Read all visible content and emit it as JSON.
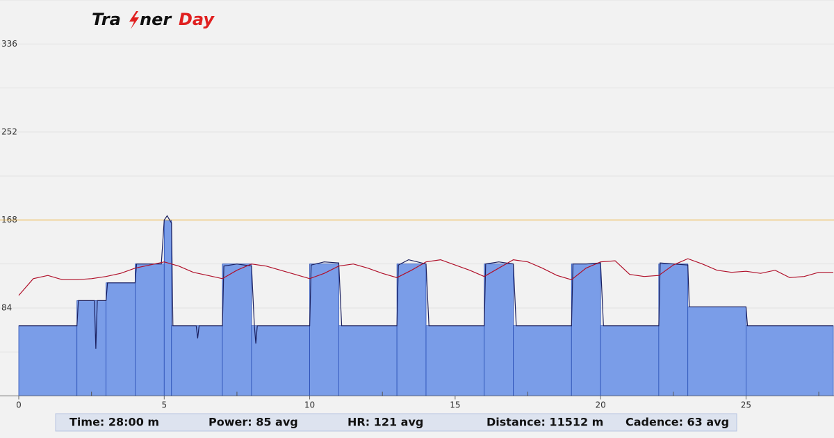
{
  "chart_data": {
    "type": "line",
    "logo": [
      "Tra",
      "ner",
      "Day"
    ],
    "logo_colors": [
      "#111111",
      "#e02020"
    ],
    "xlim": [
      0,
      28
    ],
    "xticks": [
      0,
      5,
      10,
      15,
      20,
      25
    ],
    "minor_xticks": [
      2.5,
      7.5,
      12.5,
      17.5,
      22.5,
      27.5
    ],
    "ylim": [
      0,
      378
    ],
    "yticks": [
      84,
      168,
      252,
      336
    ],
    "minor_yticks": [
      42,
      126,
      210,
      294,
      378
    ],
    "grid": true,
    "reference_line": {
      "value": 168,
      "color": "#f0b030"
    },
    "series": [
      {
        "style": "step",
        "color": "#7a9de8",
        "edge_color": "#2a4fb5",
        "x": [
          0,
          2,
          3,
          4,
          5,
          5.25,
          7,
          8,
          10,
          11,
          13,
          14,
          16,
          17,
          19,
          20,
          22,
          23,
          25
        ],
        "values": [
          67,
          91,
          108,
          126,
          168,
          67,
          126,
          67,
          126,
          67,
          126,
          67,
          126,
          67,
          126,
          67,
          126,
          85,
          67
        ]
      },
      {
        "style": "line",
        "color": "#1a1f5e",
        "x": [
          0,
          2,
          2.05,
          2.6,
          2.65,
          2.7,
          3,
          3.05,
          4,
          4.05,
          4.9,
          5,
          5.1,
          5.25,
          5.3,
          6.1,
          6.15,
          6.2,
          7,
          7.05,
          7.5,
          8,
          8.1,
          8.15,
          8.2,
          10,
          10.05,
          10.5,
          11,
          11.1,
          13,
          13.05,
          13.4,
          14,
          14.1,
          16,
          16.05,
          16.5,
          17,
          17.1,
          19,
          19.05,
          19.5,
          20,
          20.1,
          22,
          22.05,
          22.5,
          23,
          23.05,
          25,
          25.05,
          28
        ],
        "values": [
          67,
          67,
          91,
          91,
          45,
          91,
          91,
          108,
          108,
          126,
          126,
          168,
          172,
          165,
          67,
          67,
          55,
          67,
          67,
          124,
          126,
          124,
          67,
          50,
          67,
          67,
          125,
          128,
          127,
          67,
          67,
          125,
          130,
          126,
          67,
          67,
          126,
          128,
          126,
          67,
          67,
          126,
          126,
          127,
          67,
          67,
          127,
          126,
          125,
          85,
          85,
          67,
          67
        ]
      },
      {
        "style": "line",
        "color": "#b0102a",
        "x": [
          0,
          0.5,
          1,
          1.5,
          2,
          2.5,
          3,
          3.5,
          4,
          4.5,
          5,
          5.5,
          6,
          6.5,
          7,
          7.5,
          8,
          8.5,
          9,
          9.5,
          10,
          10.5,
          11,
          11.5,
          12,
          12.5,
          13,
          13.5,
          14,
          14.5,
          15,
          15.5,
          16,
          16.5,
          17,
          17.5,
          18,
          18.5,
          19,
          19.5,
          20,
          20.5,
          21,
          21.5,
          22,
          22.5,
          23,
          23.5,
          24,
          24.5,
          25,
          25.5,
          26,
          26.5,
          27,
          27.5,
          28
        ],
        "values": [
          96,
          112,
          115,
          111,
          111,
          112,
          114,
          117,
          122,
          125,
          128,
          124,
          118,
          115,
          112,
          120,
          126,
          124,
          120,
          116,
          112,
          117,
          124,
          126,
          122,
          117,
          113,
          120,
          128,
          130,
          125,
          120,
          114,
          122,
          130,
          128,
          122,
          115,
          111,
          122,
          128,
          129,
          116,
          114,
          115,
          125,
          131,
          126,
          120,
          118,
          119,
          117,
          120,
          113,
          114,
          118,
          118
        ]
      }
    ],
    "summary": [
      "Time: 28:00 m",
      "Power: 85 avg",
      "HR: 121 avg",
      "Distance: 11512 m",
      "Cadence: 63 avg"
    ]
  }
}
